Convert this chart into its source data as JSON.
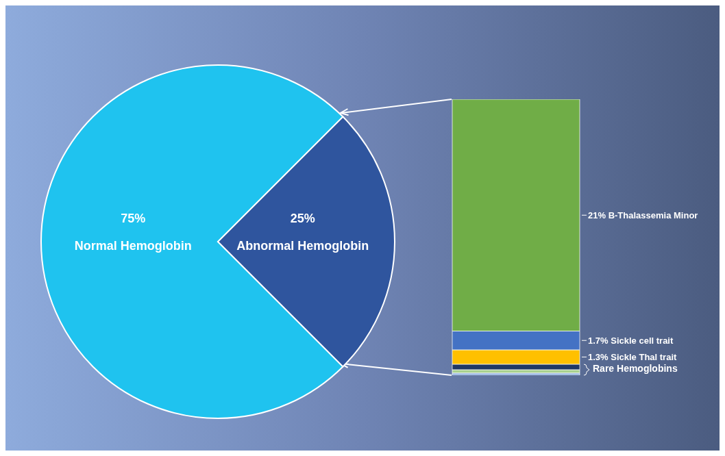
{
  "chart_data": [
    {
      "type": "pie",
      "categories": [
        "Normal Hemoglobin",
        "Abnormal Hemoglobin"
      ],
      "values": [
        75,
        25
      ],
      "colors": [
        "#1fc3ef",
        "#2f559e"
      ],
      "value_labels": [
        "75%",
        "25%"
      ]
    },
    {
      "type": "bar",
      "stacked": true,
      "categories": [
        null
      ],
      "ylim": [
        0,
        25
      ],
      "tick_labels": false,
      "annotations": [
        "Rare Hemoglobins"
      ],
      "series": [
        {
          "color": "#8fb0e0",
          "values": [
            0.2
          ]
        },
        {
          "color": "#a9d18e",
          "values": [
            0.3
          ]
        },
        {
          "color": "#203864",
          "values": [
            0.5
          ]
        },
        {
          "name": "Sickle Thal trait",
          "color": "#ffc000",
          "values": [
            1.3
          ],
          "value_labels": [
            "1.3%"
          ]
        },
        {
          "name": "Sickle cell trait",
          "color": "#4472c4",
          "values": [
            1.7
          ],
          "value_labels": [
            "1.7%"
          ]
        },
        {
          "name": "B-Thalassemia Minor",
          "color": "#70ad47",
          "values": [
            21
          ],
          "value_labels": [
            "21%"
          ]
        }
      ]
    }
  ]
}
